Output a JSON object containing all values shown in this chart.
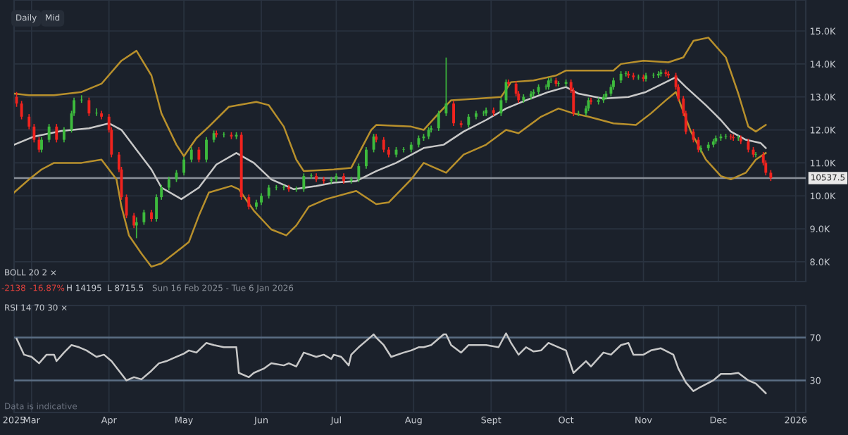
{
  "chart_data": [
    {
      "type": "candlestick",
      "x": [
        "2025-02-23",
        "2025-02-25",
        "2025-02-28",
        "2025-03-02",
        "2025-03-04",
        "2025-03-05",
        "2025-03-08",
        "2025-03-11",
        "2025-03-14",
        "2025-03-17",
        "2025-03-18",
        "2025-03-21",
        "2025-03-24",
        "2025-03-27",
        "2025-03-29",
        "2025-04-01",
        "2025-04-02",
        "2025-04-05",
        "2025-04-06",
        "2025-04-08",
        "2025-04-11",
        "2025-04-12",
        "2025-04-15",
        "2025-04-18",
        "2025-04-20",
        "2025-04-22",
        "2025-04-25",
        "2025-04-28",
        "2025-05-01",
        "2025-05-04",
        "2025-05-07",
        "2025-05-10",
        "2025-05-13",
        "2025-05-14",
        "2025-05-17",
        "2025-05-20",
        "2025-05-22",
        "2025-05-24",
        "2025-05-27",
        "2025-05-30",
        "2025-06-01",
        "2025-06-04",
        "2025-06-07",
        "2025-06-10",
        "2025-06-12",
        "2025-06-15",
        "2025-06-18",
        "2025-06-21",
        "2025-06-23",
        "2025-06-26",
        "2025-06-29",
        "2025-07-01",
        "2025-07-04",
        "2025-07-07",
        "2025-07-10",
        "2025-07-13",
        "2025-07-16",
        "2025-07-17",
        "2025-07-20",
        "2025-07-22",
        "2025-07-25",
        "2025-07-28",
        "2025-07-31",
        "2025-08-03",
        "2025-08-05",
        "2025-08-07",
        "2025-08-08",
        "2025-08-11",
        "2025-08-14",
        "2025-08-17",
        "2025-08-20",
        "2025-08-23",
        "2025-08-26",
        "2025-08-29",
        "2025-08-30",
        "2025-09-02",
        "2025-09-05",
        "2025-09-07",
        "2025-09-08",
        "2025-09-11",
        "2025-09-12",
        "2025-09-14",
        "2025-09-17",
        "2025-09-18",
        "2025-09-20",
        "2025-09-23",
        "2025-09-24",
        "2025-09-25",
        "2025-09-27",
        "2025-09-28",
        "2025-10-01",
        "2025-10-03",
        "2025-10-04",
        "2025-10-06",
        "2025-10-09",
        "2025-10-10",
        "2025-10-11",
        "2025-10-14",
        "2025-10-16",
        "2025-10-17",
        "2025-10-19",
        "2025-10-20",
        "2025-10-23",
        "2025-10-25",
        "2025-10-26",
        "2025-10-28",
        "2025-10-30",
        "2025-11-01",
        "2025-11-02",
        "2025-11-05",
        "2025-11-07",
        "2025-11-08",
        "2025-11-10",
        "2025-11-11",
        "2025-11-14",
        "2025-11-15",
        "2025-11-17",
        "2025-11-18",
        "2025-11-21",
        "2025-11-23",
        "2025-11-24",
        "2025-11-27",
        "2025-11-29",
        "2025-11-30",
        "2025-12-02",
        "2025-12-04",
        "2025-12-06",
        "2025-12-07",
        "2025-12-09",
        "2025-12-10",
        "2025-12-13",
        "2025-12-15",
        "2025-12-16",
        "2025-12-19",
        "2025-12-20",
        "2025-12-22"
      ],
      "ohlc": [
        [
          13000,
          13150,
          12700,
          12800
        ],
        [
          12800,
          12880,
          12320,
          12400
        ],
        [
          12400,
          12480,
          12020,
          12100
        ],
        [
          12100,
          12180,
          11620,
          11700
        ],
        [
          11700,
          11780,
          11320,
          11400
        ],
        [
          11400,
          11780,
          11320,
          11700
        ],
        [
          11700,
          12180,
          11620,
          12100
        ],
        [
          12100,
          12180,
          11620,
          11700
        ],
        [
          11700,
          12080,
          11620,
          12000
        ],
        [
          12000,
          12580,
          11920,
          12500
        ],
        [
          12500,
          12980,
          12420,
          12900
        ],
        [
          12900,
          13050,
          12820,
          12900
        ],
        [
          12900,
          12980,
          12420,
          12500
        ],
        [
          12500,
          12650,
          12420,
          12500
        ],
        [
          12500,
          12580,
          12320,
          12400
        ],
        [
          12400,
          12480,
          11920,
          12000
        ],
        [
          12000,
          12080,
          11170,
          11250
        ],
        [
          11250,
          11330,
          10720,
          10800
        ],
        [
          10800,
          10880,
          9880,
          9960
        ],
        [
          9960,
          10040,
          9320,
          9400
        ],
        [
          9400,
          9480,
          9020,
          9100
        ],
        [
          9100,
          9350,
          8715.5,
          9200
        ],
        [
          9200,
          9580,
          9120,
          9500
        ],
        [
          9500,
          9580,
          9220,
          9300
        ],
        [
          9300,
          10040,
          9220,
          9960
        ],
        [
          9960,
          10330,
          9880,
          10250
        ],
        [
          10250,
          10580,
          10170,
          10500
        ],
        [
          10500,
          10780,
          10420,
          10700
        ],
        [
          10700,
          11180,
          10620,
          11100
        ],
        [
          11100,
          11480,
          11020,
          11400
        ],
        [
          11400,
          11480,
          11020,
          11100
        ],
        [
          11100,
          11780,
          11020,
          11700
        ],
        [
          11700,
          11980,
          11620,
          11900
        ],
        [
          11900,
          11980,
          11770,
          11850
        ],
        [
          11850,
          11930,
          11770,
          11850
        ],
        [
          11850,
          11930,
          11720,
          11800
        ],
        [
          11800,
          11930,
          11720,
          11850
        ],
        [
          11850,
          11930,
          9880,
          9960
        ],
        [
          9960,
          10040,
          9590,
          9670
        ],
        [
          9670,
          9880,
          9590,
          9800
        ],
        [
          9800,
          10080,
          9720,
          10000
        ],
        [
          10000,
          10330,
          9920,
          10250
        ],
        [
          10250,
          10330,
          10170,
          10250
        ],
        [
          10250,
          10330,
          10170,
          10250
        ],
        [
          10250,
          10330,
          10120,
          10200
        ],
        [
          10200,
          10280,
          10120,
          10200
        ],
        [
          10200,
          10680,
          10120,
          10600
        ],
        [
          10600,
          10680,
          10520,
          10600
        ],
        [
          10600,
          10680,
          10420,
          10500
        ],
        [
          10500,
          10580,
          10370,
          10450
        ],
        [
          10450,
          10580,
          10370,
          10500
        ],
        [
          10500,
          10680,
          10420,
          10600
        ],
        [
          10600,
          10680,
          10370,
          10450
        ],
        [
          10450,
          10580,
          10370,
          10500
        ],
        [
          10500,
          10980,
          10420,
          10900
        ],
        [
          10900,
          11480,
          10820,
          11400
        ],
        [
          11400,
          11880,
          11320,
          11800
        ],
        [
          11800,
          11880,
          11620,
          11700
        ],
        [
          11700,
          11780,
          11320,
          11400
        ],
        [
          11400,
          11480,
          11170,
          11250
        ],
        [
          11250,
          11480,
          11170,
          11400
        ],
        [
          11400,
          11480,
          11320,
          11400
        ],
        [
          11400,
          11630,
          11320,
          11550
        ],
        [
          11550,
          11830,
          11470,
          11750
        ],
        [
          11750,
          11880,
          11670,
          11800
        ],
        [
          11800,
          12080,
          11720,
          12000
        ],
        [
          12000,
          12130,
          11920,
          12050
        ],
        [
          12050,
          12580,
          11970,
          12500
        ],
        [
          12500,
          14195,
          12420,
          12800
        ],
        [
          12800,
          12880,
          12120,
          12200
        ],
        [
          12200,
          12280,
          12070,
          12150
        ],
        [
          12150,
          12480,
          12070,
          12400
        ],
        [
          12400,
          12580,
          12320,
          12500
        ],
        [
          12500,
          12580,
          12420,
          12500
        ],
        [
          12500,
          12680,
          12420,
          12600
        ],
        [
          12600,
          12680,
          12420,
          12500
        ],
        [
          12500,
          12980,
          12420,
          12900
        ],
        [
          12900,
          13530,
          12820,
          13450
        ],
        [
          13450,
          13530,
          13320,
          13400
        ],
        [
          13400,
          13480,
          13020,
          13100
        ],
        [
          13100,
          13180,
          12820,
          12900
        ],
        [
          12900,
          13080,
          12820,
          13000
        ],
        [
          13000,
          13180,
          12920,
          13100
        ],
        [
          13100,
          13230,
          13020,
          13150
        ],
        [
          13150,
          13380,
          13070,
          13300
        ],
        [
          13300,
          13380,
          13220,
          13300
        ],
        [
          13300,
          13580,
          13220,
          13500
        ],
        [
          13500,
          13580,
          13420,
          13500
        ],
        [
          13500,
          13580,
          13320,
          13400
        ],
        [
          13400,
          13480,
          13320,
          13400
        ],
        [
          13400,
          13530,
          13320,
          13450
        ],
        [
          13450,
          13530,
          13120,
          13200
        ],
        [
          13200,
          13280,
          12420,
          12500
        ],
        [
          12500,
          12580,
          12420,
          12500
        ],
        [
          12500,
          12730,
          12420,
          12650
        ],
        [
          12650,
          12980,
          12570,
          12900
        ],
        [
          12900,
          12980,
          12770,
          12850
        ],
        [
          12850,
          12980,
          12770,
          12900
        ],
        [
          12900,
          13080,
          12820,
          13000
        ],
        [
          13000,
          13180,
          12920,
          13100
        ],
        [
          13100,
          13380,
          13020,
          13300
        ],
        [
          13300,
          13580,
          13220,
          13500
        ],
        [
          13500,
          13780,
          13420,
          13700
        ],
        [
          13700,
          13780,
          13620,
          13700
        ],
        [
          13700,
          13780,
          13570,
          13650
        ],
        [
          13650,
          13730,
          13520,
          13600
        ],
        [
          13600,
          13680,
          13520,
          13600
        ],
        [
          13600,
          13680,
          13470,
          13550
        ],
        [
          13550,
          13730,
          13470,
          13650
        ],
        [
          13650,
          13730,
          13570,
          13650
        ],
        [
          13650,
          13780,
          13570,
          13700
        ],
        [
          13700,
          13830,
          13620,
          13750
        ],
        [
          13750,
          13830,
          13620,
          13700
        ],
        [
          13700,
          13780,
          13570,
          13650
        ],
        [
          13650,
          13730,
          13220,
          13300
        ],
        [
          13300,
          13380,
          12870,
          12950
        ],
        [
          12950,
          13030,
          12420,
          12500
        ],
        [
          12500,
          12580,
          11870,
          11950
        ],
        [
          11950,
          12030,
          11620,
          11700
        ],
        [
          11700,
          11780,
          11320,
          11400
        ],
        [
          11400,
          11530,
          11320,
          11450
        ],
        [
          11450,
          11630,
          11370,
          11550
        ],
        [
          11550,
          11730,
          11470,
          11650
        ],
        [
          11650,
          11830,
          11570,
          11750
        ],
        [
          11750,
          11880,
          11670,
          11800
        ],
        [
          11800,
          11880,
          11720,
          11800
        ],
        [
          11800,
          11880,
          11700,
          11780
        ],
        [
          11780,
          11860,
          11670,
          11750
        ],
        [
          11750,
          11830,
          11670,
          11750
        ],
        [
          11750,
          11830,
          11570,
          11650
        ],
        [
          11650,
          11730,
          11320,
          11400
        ],
        [
          11400,
          11480,
          11170,
          11250
        ],
        [
          11250,
          11330,
          11170,
          11250
        ],
        [
          11250,
          11330,
          10920,
          11000
        ],
        [
          11000,
          11080,
          10620,
          10700
        ],
        [
          10700,
          10780,
          10450,
          10537.5
        ]
      ],
      "series": [
        {
          "type": "line",
          "color": "#b8902c",
          "x": [
            "2025-02-22",
            "2025-02-28",
            "2025-03-10",
            "2025-03-21",
            "2025-03-29",
            "2025-04-06",
            "2025-04-12",
            "2025-04-18",
            "2025-04-22",
            "2025-04-28",
            "2025-05-01",
            "2025-05-06",
            "2025-05-11",
            "2025-05-19",
            "2025-05-30",
            "2025-06-04",
            "2025-06-10",
            "2025-06-15",
            "2025-06-18",
            "2025-06-30",
            "2025-07-07",
            "2025-07-15",
            "2025-07-17",
            "2025-07-31",
            "2025-08-05",
            "2025-08-11",
            "2025-08-16",
            "2025-08-27",
            "2025-09-05",
            "2025-09-09",
            "2025-09-18",
            "2025-09-27",
            "2025-10-01",
            "2025-10-10",
            "2025-10-20",
            "2025-10-23",
            "2025-11-01",
            "2025-11-11",
            "2025-11-17",
            "2025-11-21",
            "2025-11-27",
            "2025-12-04",
            "2025-12-09",
            "2025-12-13",
            "2025-12-16",
            "2025-12-20"
          ],
          "values": [
            13100,
            13050,
            13050,
            13150,
            13400,
            14100,
            14400,
            13650,
            12500,
            11550,
            11200,
            11750,
            12100,
            12700,
            12850,
            12750,
            12100,
            11100,
            10750,
            10800,
            10850,
            12000,
            12150,
            12100,
            12000,
            12500,
            12900,
            12950,
            13000,
            13450,
            13500,
            13650,
            13800,
            13800,
            13800,
            14000,
            14100,
            14050,
            14200,
            14700,
            14800,
            14200,
            13100,
            12100,
            11950,
            12150
          ]
        },
        {
          "type": "line",
          "color": "#c8c8c8",
          "x": [
            "2025-02-22",
            "2025-03-02",
            "2025-03-13",
            "2025-03-24",
            "2025-04-01",
            "2025-04-06",
            "2025-04-12",
            "2025-04-18",
            "2025-04-22",
            "2025-04-30",
            "2025-05-07",
            "2025-05-14",
            "2025-05-22",
            "2025-05-29",
            "2025-06-05",
            "2025-06-14",
            "2025-06-23",
            "2025-06-30",
            "2025-07-09",
            "2025-07-17",
            "2025-07-25",
            "2025-08-05",
            "2025-08-13",
            "2025-08-21",
            "2025-08-30",
            "2025-09-07",
            "2025-09-15",
            "2025-09-24",
            "2025-10-01",
            "2025-10-06",
            "2025-10-16",
            "2025-10-26",
            "2025-11-02",
            "2025-11-10",
            "2025-11-14",
            "2025-11-18",
            "2025-11-26",
            "2025-12-02",
            "2025-12-06",
            "2025-12-12",
            "2025-12-18",
            "2025-12-20"
          ],
          "values": [
            11550,
            11800,
            11970,
            12050,
            12200,
            12000,
            11400,
            10800,
            10250,
            9900,
            10250,
            10950,
            11300,
            11000,
            10500,
            10200,
            10300,
            10400,
            10450,
            10750,
            11000,
            11450,
            11550,
            11950,
            12300,
            12650,
            12900,
            13150,
            13300,
            13100,
            12950,
            13000,
            13150,
            13450,
            13600,
            13300,
            12750,
            12300,
            11950,
            11700,
            11600,
            11450
          ]
        },
        {
          "type": "line",
          "color": "#b8902c",
          "x": [
            "2025-02-22",
            "2025-02-28",
            "2025-03-05",
            "2025-03-10",
            "2025-03-21",
            "2025-03-29",
            "2025-04-04",
            "2025-04-06",
            "2025-04-09",
            "2025-04-14",
            "2025-04-18",
            "2025-04-22",
            "2025-04-28",
            "2025-05-03",
            "2025-05-07",
            "2025-05-11",
            "2025-05-20",
            "2025-05-23",
            "2025-05-29",
            "2025-06-05",
            "2025-06-11",
            "2025-06-15",
            "2025-06-20",
            "2025-06-27",
            "2025-07-09",
            "2025-07-17",
            "2025-07-22",
            "2025-07-31",
            "2025-08-05",
            "2025-08-08",
            "2025-08-14",
            "2025-08-21",
            "2025-08-30",
            "2025-09-07",
            "2025-09-12",
            "2025-09-21",
            "2025-09-28",
            "2025-10-04",
            "2025-10-10",
            "2025-10-20",
            "2025-10-29",
            "2025-11-04",
            "2025-11-10",
            "2025-11-14",
            "2025-11-20",
            "2025-11-26",
            "2025-12-02",
            "2025-12-06",
            "2025-12-12",
            "2025-12-16",
            "2025-12-20"
          ],
          "values": [
            10100,
            10500,
            10800,
            11000,
            11000,
            11100,
            10500,
            9670,
            8800,
            8250,
            7850,
            7950,
            8300,
            8600,
            9400,
            10100,
            10300,
            10200,
            9550,
            8980,
            8800,
            9100,
            9670,
            9900,
            10150,
            9750,
            9800,
            10500,
            11000,
            10900,
            10700,
            11250,
            11550,
            12000,
            11900,
            12400,
            12650,
            12500,
            12400,
            12200,
            12150,
            12500,
            12900,
            13150,
            11950,
            11100,
            10600,
            10500,
            10700,
            11100,
            11300
          ]
        }
      ],
      "ref_lines": [
        {
          "axis": "y",
          "value": 10537.5,
          "label": "10537.5",
          "color": "#8a9099"
        }
      ],
      "annotations": [
        "Daily",
        "Mid",
        "BOLL 20 2 ×"
      ],
      "xlim": [
        "2025-02-22",
        "2026-01-05"
      ],
      "xticks": [
        {
          "value": "2025-03-01",
          "label": null
        },
        {
          "value": "2025-04-01",
          "label": null
        },
        {
          "value": "2025-05-01",
          "label": null
        },
        {
          "value": "2025-06-01",
          "label": null
        },
        {
          "value": "2025-07-01",
          "label": null
        },
        {
          "value": "2025-08-01",
          "label": null
        },
        {
          "value": "2025-09-01",
          "label": null
        },
        {
          "value": "2025-10-01",
          "label": null
        },
        {
          "value": "2025-11-01",
          "label": null
        },
        {
          "value": "2025-12-01",
          "label": null
        },
        {
          "value": "2026-01-01",
          "label": null
        }
      ],
      "ylim": [
        7400,
        15940
      ],
      "yticks": [
        {
          "value": 8000,
          "label": "8.0K"
        },
        {
          "value": 9000,
          "label": "9.0K"
        },
        {
          "value": 10000,
          "label": "10.0K"
        },
        {
          "value": 11000,
          "label": "11.0K"
        },
        {
          "value": 12000,
          "label": "12.0K"
        },
        {
          "value": 13000,
          "label": "13.0K"
        },
        {
          "value": 14000,
          "label": "14.0K"
        },
        {
          "value": 15000,
          "label": "15.0K"
        }
      ],
      "tick_labels": "y",
      "grid": true
    },
    {
      "type": "line",
      "series": [
        {
          "color": "#c8c8c8",
          "x": [
            "2025-02-23",
            "2025-02-26",
            "2025-03-01",
            "2025-03-04",
            "2025-03-07",
            "2025-03-10",
            "2025-03-11",
            "2025-03-14",
            "2025-03-17",
            "2025-03-20",
            "2025-03-23",
            "2025-03-27",
            "2025-03-30",
            "2025-04-02",
            "2025-04-05",
            "2025-04-08",
            "2025-04-11",
            "2025-04-14",
            "2025-04-18",
            "2025-04-21",
            "2025-04-24",
            "2025-04-28",
            "2025-05-01",
            "2025-05-03",
            "2025-05-06",
            "2025-05-10",
            "2025-05-13",
            "2025-05-17",
            "2025-05-20",
            "2025-05-22",
            "2025-05-23",
            "2025-05-27",
            "2025-05-29",
            "2025-06-02",
            "2025-06-05",
            "2025-06-10",
            "2025-06-12",
            "2025-06-15",
            "2025-06-18",
            "2025-06-23",
            "2025-06-26",
            "2025-06-29",
            "2025-06-30",
            "2025-07-03",
            "2025-07-06",
            "2025-07-07",
            "2025-07-10",
            "2025-07-15",
            "2025-07-16",
            "2025-07-17",
            "2025-07-20",
            "2025-07-23",
            "2025-07-28",
            "2025-07-31",
            "2025-08-03",
            "2025-08-05",
            "2025-08-08",
            "2025-08-13",
            "2025-08-14",
            "2025-08-16",
            "2025-08-20",
            "2025-08-23",
            "2025-08-27",
            "2025-08-30",
            "2025-09-04",
            "2025-09-07",
            "2025-09-09",
            "2025-09-12",
            "2025-09-15",
            "2025-09-18",
            "2025-09-21",
            "2025-09-24",
            "2025-09-28",
            "2025-10-01",
            "2025-10-04",
            "2025-10-09",
            "2025-10-11",
            "2025-10-16",
            "2025-10-19",
            "2025-10-23",
            "2025-10-26",
            "2025-10-28",
            "2025-11-01",
            "2025-11-04",
            "2025-11-08",
            "2025-11-13",
            "2025-11-15",
            "2025-11-18",
            "2025-11-21",
            "2025-11-24",
            "2025-11-29",
            "2025-12-02",
            "2025-12-06",
            "2025-12-09",
            "2025-12-13",
            "2025-12-16",
            "2025-12-20"
          ],
          "values": [
            69,
            54,
            52,
            46,
            54,
            54,
            48,
            56,
            63,
            61,
            58,
            52,
            54,
            48,
            39,
            30,
            33,
            31,
            39,
            46,
            48,
            52,
            55,
            58,
            56,
            65,
            63,
            61,
            61,
            61,
            37,
            33,
            37,
            41,
            46,
            44,
            46,
            43,
            56,
            52,
            54,
            50,
            54,
            52,
            44,
            54,
            61,
            71,
            73,
            70,
            63,
            52,
            56,
            58,
            61,
            61,
            63,
            73,
            73,
            63,
            56,
            63,
            63,
            63,
            61,
            74,
            65,
            54,
            61,
            57,
            58,
            65,
            61,
            58,
            37,
            48,
            43,
            56,
            54,
            63,
            65,
            54,
            54,
            58,
            60,
            54,
            41,
            28,
            20,
            24,
            30,
            36,
            36,
            37,
            30,
            27,
            18
          ]
        }
      ],
      "ref_lines": [
        {
          "axis": "y",
          "value": 70,
          "color": "#5b6e84"
        },
        {
          "axis": "y",
          "value": 30,
          "color": "#5b6e84"
        }
      ],
      "annotations": [
        "-2138",
        "-16.87%",
        "H 14195",
        "L 8715.5",
        "Sun 16 Feb 2025 - Tue 6 Jan 2026",
        "RSI 14 70 30 ×",
        "Data is indicative"
      ],
      "xlim": [
        "2025-02-22",
        "2026-01-05"
      ],
      "xticks": [
        {
          "value": "2025-02-22",
          "label": "2025"
        },
        {
          "value": "2025-03-01",
          "label": "Mar"
        },
        {
          "value": "2025-04-01",
          "label": "Apr"
        },
        {
          "value": "2025-05-01",
          "label": "May"
        },
        {
          "value": "2025-06-01",
          "label": "Jun"
        },
        {
          "value": "2025-07-01",
          "label": "Jul"
        },
        {
          "value": "2025-08-01",
          "label": "Aug"
        },
        {
          "value": "2025-09-01",
          "label": "Sept"
        },
        {
          "value": "2025-10-01",
          "label": "Oct"
        },
        {
          "value": "2025-11-01",
          "label": "Nov"
        },
        {
          "value": "2025-12-01",
          "label": "Dec"
        },
        {
          "value": "2026-01-01",
          "label": "2026"
        }
      ],
      "ylim": [
        0,
        100
      ],
      "yticks": [
        30,
        70
      ],
      "grid": "x"
    }
  ]
}
